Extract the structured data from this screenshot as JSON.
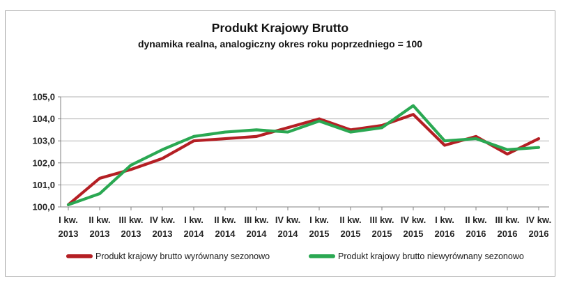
{
  "header": {
    "title": "Produkt Krajowy Brutto",
    "subtitle": "dynamika realna, analogiczny okres roku poprzedniego = 100"
  },
  "frame": {
    "border_color": "#a6a6a6",
    "background": "#ffffff",
    "gridline_color": "#b3b3b3",
    "axis_color": "#808080"
  },
  "chart_data": {
    "type": "line",
    "categories": [
      {
        "quarter": "I kw.",
        "year": "2013"
      },
      {
        "quarter": "II kw.",
        "year": "2013"
      },
      {
        "quarter": "III kw.",
        "year": "2013"
      },
      {
        "quarter": "IV kw.",
        "year": "2013"
      },
      {
        "quarter": "I kw.",
        "year": "2014"
      },
      {
        "quarter": "II kw.",
        "year": "2014"
      },
      {
        "quarter": "III kw.",
        "year": "2014"
      },
      {
        "quarter": "IV kw.",
        "year": "2014"
      },
      {
        "quarter": "I kw.",
        "year": "2015"
      },
      {
        "quarter": "II kw.",
        "year": "2015"
      },
      {
        "quarter": "III kw.",
        "year": "2015"
      },
      {
        "quarter": "IV kw.",
        "year": "2015"
      },
      {
        "quarter": "I kw.",
        "year": "2016"
      },
      {
        "quarter": "II kw.",
        "year": "2016"
      },
      {
        "quarter": "III kw.",
        "year": "2016"
      },
      {
        "quarter": "IV kw.",
        "year": "2016"
      }
    ],
    "series": [
      {
        "name": "Produkt krajowy brutto wyrównany sezonowo",
        "color": "#b41f24",
        "values": [
          100.1,
          101.3,
          101.7,
          102.2,
          103.0,
          103.1,
          103.2,
          103.6,
          104.0,
          103.5,
          103.7,
          104.2,
          102.8,
          103.2,
          102.4,
          103.1
        ]
      },
      {
        "name": "Produkt krajowy brutto niewyrównany sezonowo",
        "color": "#2aa852",
        "values": [
          100.1,
          100.6,
          101.9,
          102.6,
          103.2,
          103.4,
          103.5,
          103.4,
          103.9,
          103.4,
          103.6,
          104.6,
          103.0,
          103.1,
          102.6,
          102.7
        ]
      }
    ],
    "title": "Produkt Krajowy Brutto",
    "subtitle": "dynamika realna, analogiczny okres roku poprzedniego = 100",
    "xlabel": "",
    "ylabel": "",
    "ylim": [
      100.0,
      105.0
    ],
    "ytick_step": 1.0,
    "ytick_labels": [
      "100,0",
      "101,0",
      "102,0",
      "103,0",
      "104,0",
      "105,0"
    ],
    "grid": "horizontal",
    "legend_position": "bottom"
  }
}
